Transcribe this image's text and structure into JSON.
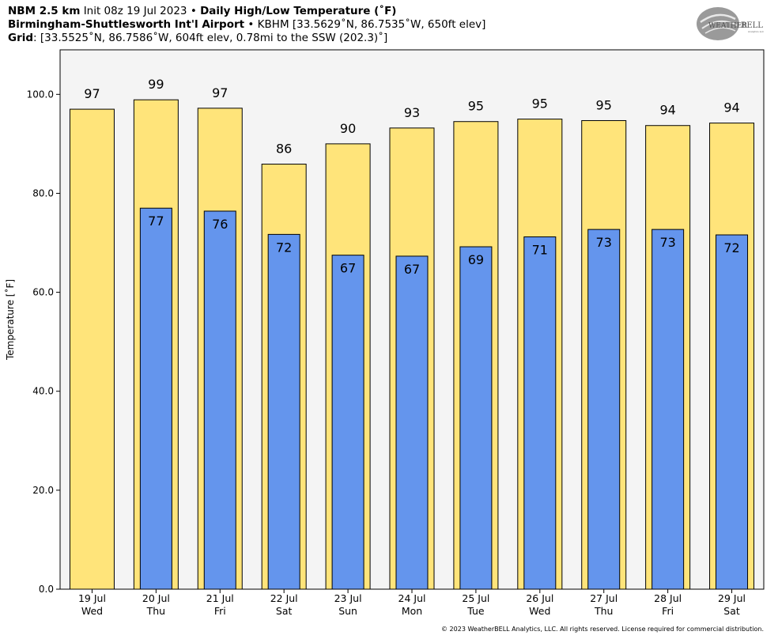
{
  "header": {
    "line1": {
      "model": "NBM 2.5 km",
      "init": "Init 08z 19 Jul 2023",
      "sep": "•",
      "title": "Daily High/Low Temperature (˚F)"
    },
    "line2": {
      "station": "Birmingham-Shuttlesworth Int'l Airport",
      "sep": "•",
      "details": "KBHM [33.5629˚N, 86.7535˚W, 650ft elev]"
    },
    "line3": {
      "label": "Grid",
      "details": ": [33.5525˚N, 86.7586˚W, 604ft elev, 0.78mi to the SSW (202.3)˚]"
    }
  },
  "logo": {
    "text_weather": "WEATHER",
    "text_bell": "BELL",
    "sub": "Analytics LLC"
  },
  "copyright": "© 2023 WeatherBELL Analytics, LLC. All rights reserved. License required for commercial distribution.",
  "colors": {
    "high": "#ffe47a",
    "low": "#6495ed",
    "plot_bg": "#f4f4f4",
    "border": "#000000"
  },
  "chart_data": {
    "type": "bar",
    "ylabel": "Temperature [˚F]",
    "ylim": [
      0,
      109
    ],
    "yticks": [
      0.0,
      20.0,
      40.0,
      60.0,
      80.0,
      100.0
    ],
    "ytick_labels": [
      "0.0",
      "20.0",
      "40.0",
      "60.0",
      "80.0",
      "100.0"
    ],
    "grid": false,
    "categories": [
      "19 Jul",
      "20 Jul",
      "21 Jul",
      "22 Jul",
      "23 Jul",
      "24 Jul",
      "25 Jul",
      "26 Jul",
      "27 Jul",
      "28 Jul",
      "29 Jul"
    ],
    "weekdays": [
      "Wed",
      "Thu",
      "Fri",
      "Sat",
      "Sun",
      "Mon",
      "Tue",
      "Wed",
      "Thu",
      "Fri",
      "Sat"
    ],
    "series": [
      {
        "key": "high",
        "values": [
          97.0,
          98.9,
          97.2,
          85.9,
          90.0,
          93.2,
          94.5,
          95.0,
          94.7,
          93.7,
          94.2
        ],
        "labels": [
          "97",
          "99",
          "97",
          "86",
          "90",
          "93",
          "95",
          "95",
          "95",
          "94",
          "94"
        ]
      },
      {
        "key": "low",
        "values": [
          null,
          77.0,
          76.4,
          71.7,
          67.5,
          67.3,
          69.2,
          71.2,
          72.7,
          72.7,
          71.6
        ],
        "labels": [
          "",
          "77",
          "76",
          "72",
          "67",
          "67",
          "69",
          "71",
          "73",
          "73",
          "72"
        ]
      }
    ]
  }
}
